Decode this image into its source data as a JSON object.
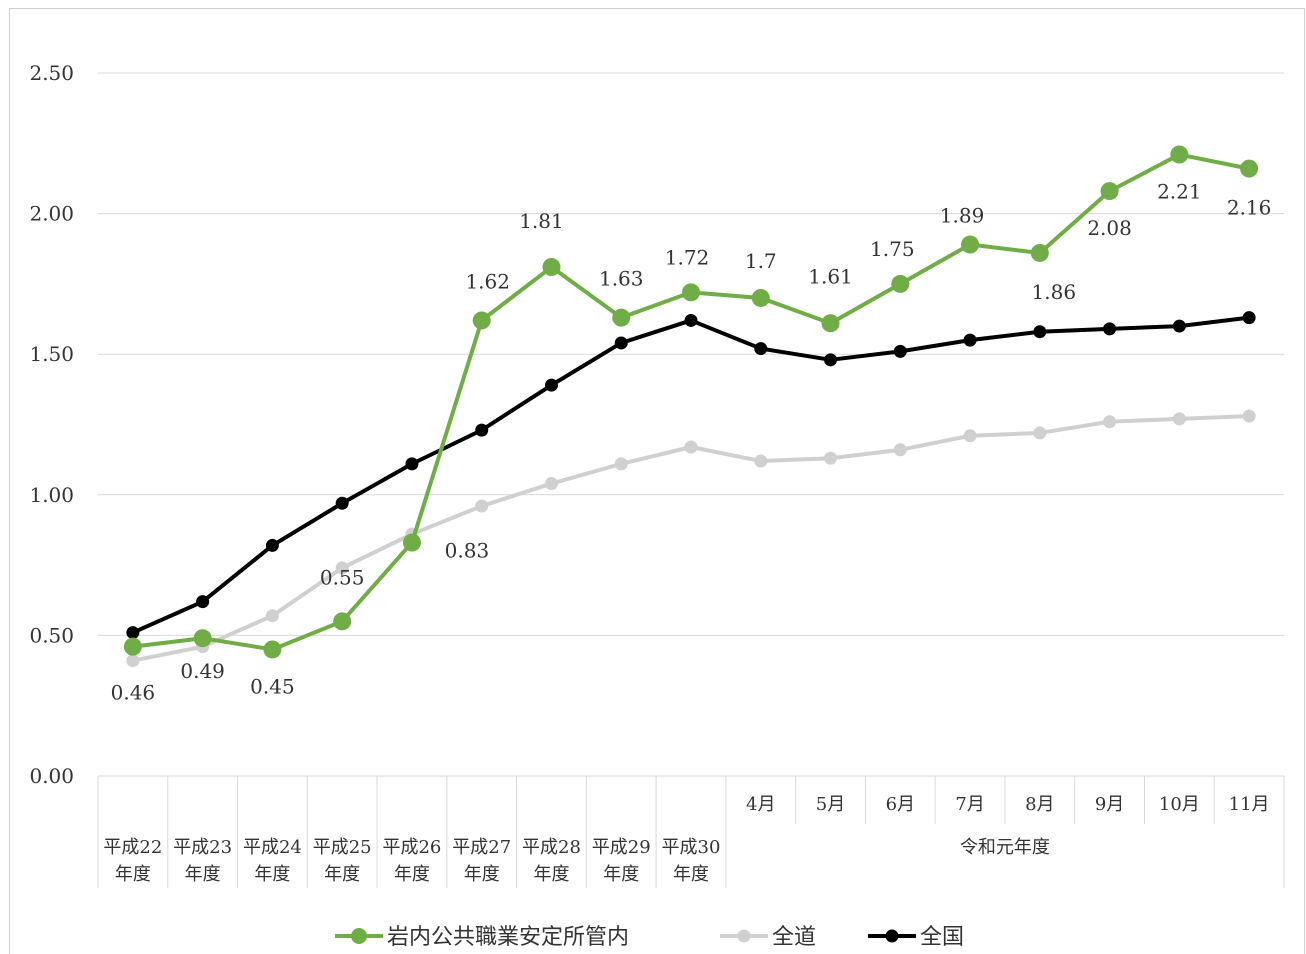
{
  "chart_data": {
    "type": "line",
    "title": "",
    "xlabel": "",
    "ylabel": "",
    "ylim": [
      0,
      2.5
    ],
    "yticks": [
      "0.00",
      "0.50",
      "1.00",
      "1.50",
      "2.00",
      "2.50"
    ],
    "ytick_values": [
      0,
      0.5,
      1.0,
      1.5,
      2.0,
      2.5
    ],
    "grid": true,
    "legend_position": "bottom",
    "categories": [
      [
        "平成22",
        "年度"
      ],
      [
        "平成23",
        "年度"
      ],
      [
        "平成24",
        "年度"
      ],
      [
        "平成25",
        "年度"
      ],
      [
        "平成26",
        "年度"
      ],
      [
        "平成27",
        "年度"
      ],
      [
        "平成28",
        "年度"
      ],
      [
        "平成29",
        "年度"
      ],
      [
        "平成30",
        "年度"
      ],
      [
        "4月"
      ],
      [
        "5月"
      ],
      [
        "6月"
      ],
      [
        "7月"
      ],
      [
        "8月"
      ],
      [
        "9月"
      ],
      [
        "10月"
      ],
      [
        "11月"
      ]
    ],
    "group_label": "令和元年度",
    "series": [
      {
        "name": "岩内公共職業安定所管内",
        "color": "#70ad47",
        "values": [
          0.46,
          0.49,
          0.45,
          0.55,
          0.83,
          1.62,
          1.81,
          1.63,
          1.72,
          1.7,
          1.61,
          1.75,
          1.89,
          1.86,
          2.08,
          2.21,
          2.16
        ],
        "data_labels": [
          "0.46",
          "0.49",
          "0.45",
          "0.55",
          "0.83",
          "1.62",
          "1.81",
          "1.63",
          "1.72",
          "1.7",
          "1.61",
          "1.75",
          "1.89",
          "1.86",
          "2.08",
          "2.21",
          "2.16"
        ]
      },
      {
        "name": "全道",
        "color": "#d0d0d0",
        "values": [
          0.41,
          0.46,
          0.57,
          0.74,
          0.86,
          0.96,
          1.04,
          1.11,
          1.17,
          1.12,
          1.13,
          1.16,
          1.21,
          1.22,
          1.26,
          1.27,
          1.28
        ]
      },
      {
        "name": "全国",
        "color": "#000000",
        "values": [
          0.51,
          0.62,
          0.82,
          0.97,
          1.11,
          1.23,
          1.39,
          1.54,
          1.62,
          1.52,
          1.48,
          1.51,
          1.55,
          1.58,
          1.59,
          1.6,
          1.63
        ]
      }
    ]
  }
}
